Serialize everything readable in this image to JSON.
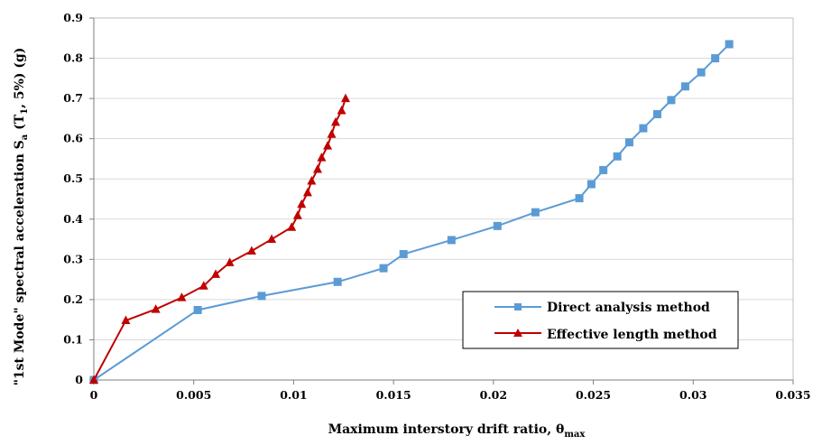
{
  "chart_data": {
    "type": "line",
    "xlabel": "Maximum interstory drift ratio, θmax",
    "ylabel": "\"1st Mode\" spectral acceleration Sa (T1, 5%) (g)",
    "xlim": [
      0,
      0.035
    ],
    "ylim": [
      0,
      0.9
    ],
    "x_ticks": [
      "0",
      "0.005",
      "0.01",
      "0.015",
      "0.02",
      "0.025",
      "0.03",
      "0.035"
    ],
    "y_ticks": [
      "0",
      "0.1",
      "0.2",
      "0.3",
      "0.4",
      "0.5",
      "0.6",
      "0.7",
      "0.8",
      "0.9"
    ],
    "grid": "horizontal",
    "legend_position": "bottom-right",
    "series": [
      {
        "name": "Direct analysis method",
        "color": "#5b9bd5",
        "marker": "square",
        "points": [
          [
            0,
            0
          ],
          [
            0.0052,
            0.174
          ],
          [
            0.0084,
            0.209
          ],
          [
            0.0122,
            0.244
          ],
          [
            0.0145,
            0.278
          ],
          [
            0.0155,
            0.313
          ],
          [
            0.0179,
            0.348
          ],
          [
            0.0202,
            0.383
          ],
          [
            0.0221,
            0.417
          ],
          [
            0.0243,
            0.452
          ],
          [
            0.0249,
            0.487
          ],
          [
            0.0255,
            0.522
          ],
          [
            0.0262,
            0.556
          ],
          [
            0.0268,
            0.591
          ],
          [
            0.0275,
            0.626
          ],
          [
            0.0282,
            0.661
          ],
          [
            0.0289,
            0.696
          ],
          [
            0.0296,
            0.73
          ],
          [
            0.0304,
            0.765
          ],
          [
            0.0311,
            0.8
          ],
          [
            0.0318,
            0.835
          ]
        ]
      },
      {
        "name": "Effective length method",
        "color": "#c00000",
        "marker": "triangle",
        "points": [
          [
            0,
            0
          ],
          [
            0.0016,
            0.148
          ],
          [
            0.0031,
            0.176
          ],
          [
            0.0044,
            0.205
          ],
          [
            0.0055,
            0.234
          ],
          [
            0.0061,
            0.263
          ],
          [
            0.0068,
            0.292
          ],
          [
            0.0079,
            0.321
          ],
          [
            0.0089,
            0.35
          ],
          [
            0.0099,
            0.38
          ],
          [
            0.0102,
            0.409
          ],
          [
            0.0104,
            0.437
          ],
          [
            0.0107,
            0.466
          ],
          [
            0.0109,
            0.495
          ],
          [
            0.0112,
            0.524
          ],
          [
            0.0114,
            0.553
          ],
          [
            0.0117,
            0.582
          ],
          [
            0.0119,
            0.611
          ],
          [
            0.0121,
            0.641
          ],
          [
            0.0124,
            0.67
          ],
          [
            0.0126,
            0.7
          ]
        ]
      }
    ]
  }
}
